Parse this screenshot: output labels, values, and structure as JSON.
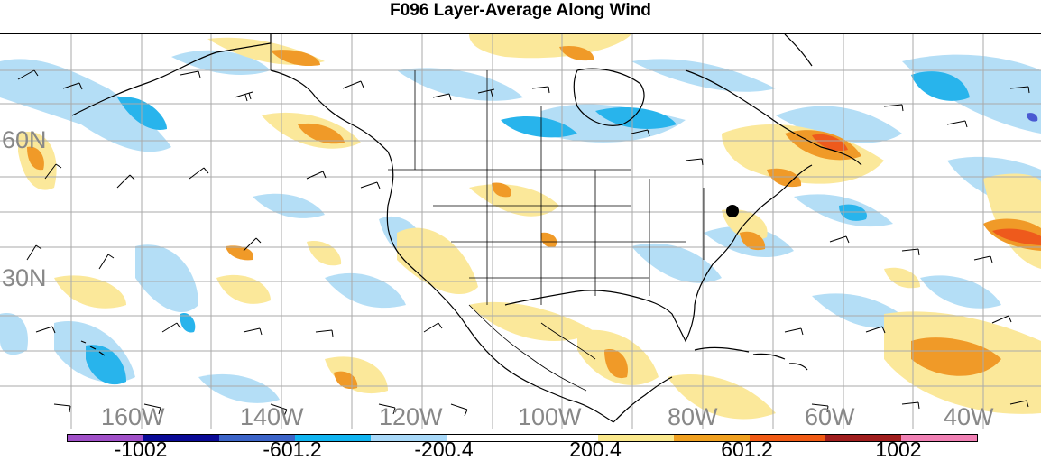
{
  "title": "F096 Layer-Average Along Wind",
  "lat_labels": [
    "60N",
    "30N"
  ],
  "lon_labels": [
    "160W",
    "140W",
    "120W",
    "100W",
    "80W",
    "60W",
    "40W"
  ],
  "colorbar": {
    "colors": [
      "#a050c8",
      "#0a0a96",
      "#3c64c8",
      "#10b4f0",
      "#a8d8f8",
      "#ffffff",
      "#ffffff",
      "#fae88c",
      "#f0a020",
      "#f05a14",
      "#a01e1e",
      "#f080b4"
    ],
    "labels": [
      "-1002",
      "-601.2",
      "-200.4",
      "200.4",
      "601.2",
      "1002"
    ]
  },
  "colors": {
    "light_blue": "#b4def6",
    "mid_blue": "#28b4ec",
    "dark_blue": "#4a5ad2",
    "light_yellow": "#fbe89a",
    "orange": "#f09a28",
    "red_orange": "#ee5a1c",
    "grid": "#aaaaaa",
    "coast": "#000000"
  },
  "marker": "station-dot"
}
